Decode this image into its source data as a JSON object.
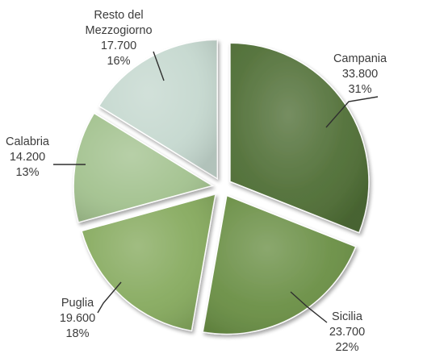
{
  "chart_data": {
    "type": "pie",
    "unit_note": "",
    "slices": [
      {
        "name": "Campania",
        "value": 33800,
        "value_label": "33.800",
        "percent_label": "31%",
        "color": "#4f6e35"
      },
      {
        "name": "Sicilia",
        "value": 23700,
        "value_label": "23.700",
        "percent_label": "22%",
        "color": "#6a8f45"
      },
      {
        "name": "Puglia",
        "value": 19600,
        "value_label": "19.600",
        "percent_label": "18%",
        "color": "#86aa5e"
      },
      {
        "name": "Calabria",
        "value": 14200,
        "value_label": "14.200",
        "percent_label": "13%",
        "color": "#a3c28f"
      },
      {
        "name": "Resto del Mezzogiorno",
        "value": 17700,
        "value_label": "17.700",
        "percent_label": "16%",
        "color": "#c5d8cf",
        "name_lines": [
          "Resto del",
          "Mezzogiorno"
        ]
      }
    ],
    "legend": "none",
    "exploded": true
  }
}
